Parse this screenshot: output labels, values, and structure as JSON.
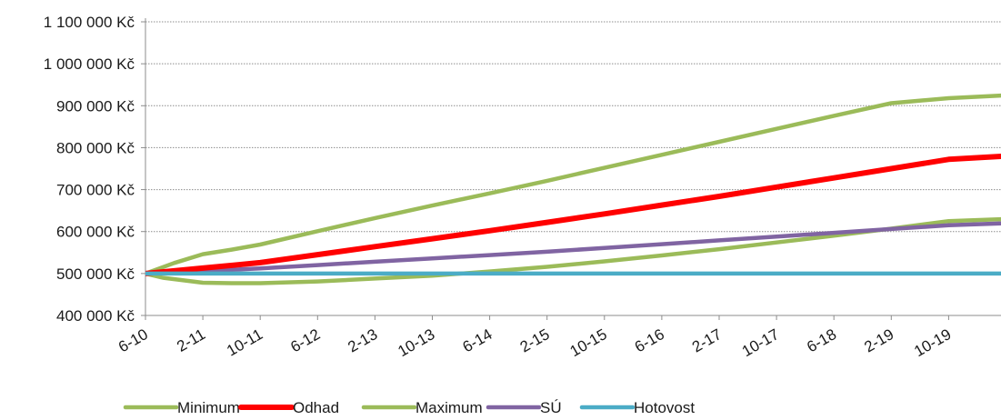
{
  "chart_data": {
    "type": "line",
    "title": "",
    "xlabel": "",
    "ylabel": "",
    "x": [
      "6-10",
      "2-11",
      "10-11",
      "6-12",
      "2-13",
      "10-13",
      "6-14",
      "2-15",
      "10-15",
      "6-16",
      "2-17",
      "10-17",
      "6-18",
      "2-19",
      "10-19"
    ],
    "y_tick_labels": [
      "400 000 Kč",
      "500 000 Kč",
      "600 000 Kč",
      "700 000 Kč",
      "800 000 Kč",
      "900 000 Kč",
      "1 000 000 Kč",
      "1 100 000 Kč"
    ],
    "ylim": [
      400000,
      1100000
    ],
    "grid": "horizontal-dotted",
    "legend_position": "bottom",
    "series": [
      {
        "name": "Minimum",
        "color": "#9bbb59",
        "x": [
          0,
          0.3,
          1,
          1.5,
          2,
          3,
          4,
          5,
          6,
          7,
          8,
          9,
          10,
          11,
          12,
          13,
          14,
          15
        ],
        "values": [
          500000,
          490000,
          478000,
          477000,
          477000,
          481000,
          488000,
          495000,
          505000,
          516000,
          529000,
          543000,
          558000,
          574000,
          590000,
          607000,
          625000,
          630000
        ]
      },
      {
        "name": "Odhad",
        "color": "#ff0000",
        "x": [
          0,
          1,
          2,
          3,
          4,
          5,
          6,
          7,
          8,
          9,
          10,
          11,
          12,
          13,
          14,
          15
        ],
        "values": [
          500000,
          513000,
          526000,
          545000,
          564000,
          583000,
          602000,
          622000,
          642000,
          663000,
          684000,
          706000,
          728000,
          750000,
          772000,
          780000
        ]
      },
      {
        "name": "Maximum",
        "color": "#9bbb59",
        "x": [
          0,
          0.5,
          1,
          1.5,
          2,
          3,
          4,
          5,
          6,
          7,
          8,
          9,
          10,
          11,
          12,
          13,
          14,
          15
        ],
        "values": [
          500000,
          525000,
          546000,
          557000,
          569000,
          601000,
          632000,
          662000,
          691000,
          721000,
          752000,
          783000,
          814000,
          845000,
          876000,
          906000,
          918000,
          925000
        ]
      },
      {
        "name": "SÚ",
        "color": "#8064a2",
        "x": [
          0,
          1,
          2,
          3,
          4,
          5,
          6,
          7,
          8,
          9,
          10,
          11,
          12,
          13,
          14,
          15
        ],
        "values": [
          500000,
          506000,
          512000,
          520000,
          528000,
          536000,
          544000,
          552000,
          561000,
          570000,
          579000,
          588000,
          597000,
          606000,
          615000,
          620000
        ]
      },
      {
        "name": "Hotovost",
        "color": "#4bacc6",
        "x": [
          0,
          15
        ],
        "values": [
          500000,
          500000
        ]
      }
    ]
  }
}
